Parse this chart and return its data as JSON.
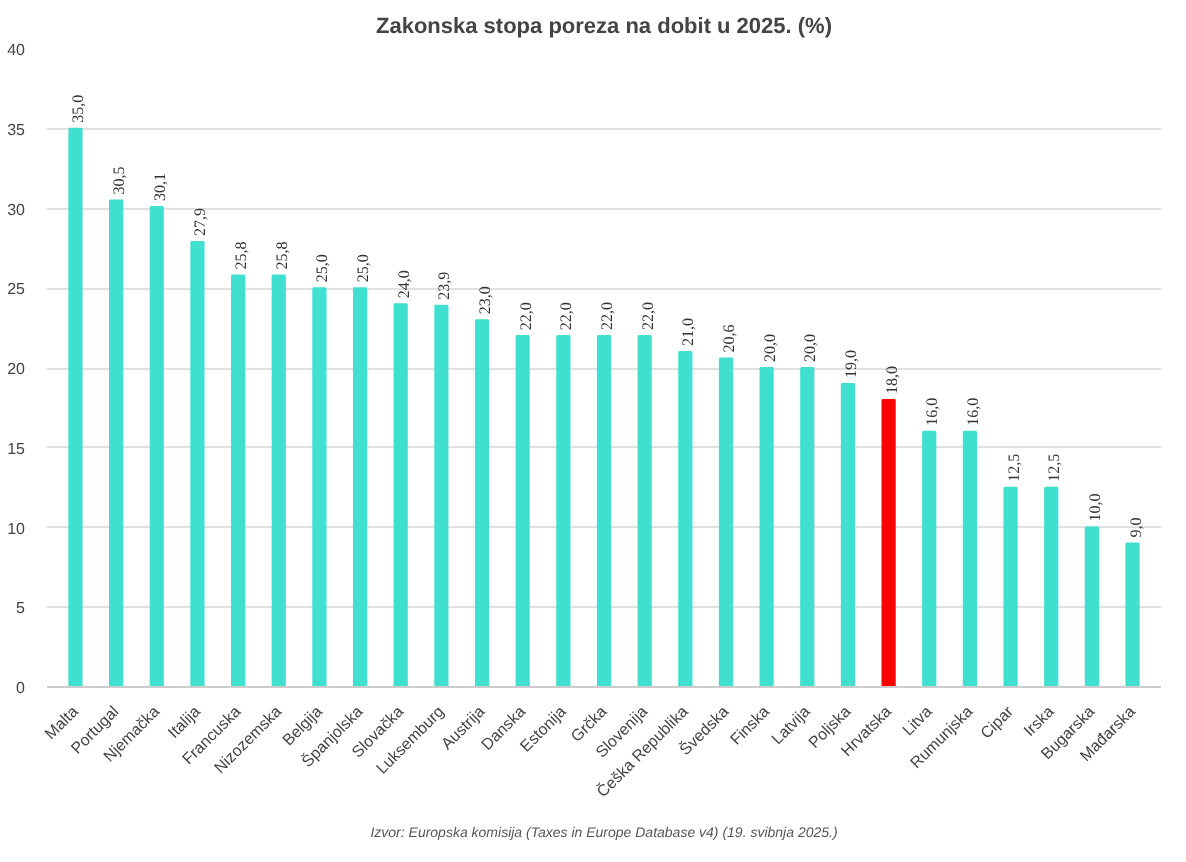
{
  "chart_data": {
    "type": "bar",
    "title": "Zakonska stopa poreza na dobit u 2025. (%)",
    "categories": [
      "Malta",
      "Portugal",
      "Njemačka",
      "Italija",
      "Francuska",
      "Nizozemska",
      "Belgija",
      "Španjolska",
      "Slovačka",
      "Luksemburg",
      "Austrija",
      "Danska",
      "Estonija",
      "Grčka",
      "Slovenija",
      "Češka Republika",
      "Švedska",
      "Finska",
      "Latvija",
      "Poljska",
      "Hrvatska",
      "Litva",
      "Rumunjska",
      "Cipar",
      "Irska",
      "Bugarska",
      "Mađarska"
    ],
    "values": [
      35.0,
      30.5,
      30.1,
      27.9,
      25.8,
      25.8,
      25.0,
      25.0,
      24.0,
      23.9,
      23.0,
      22.0,
      22.0,
      22.0,
      22.0,
      21.0,
      20.6,
      20.0,
      20.0,
      19.0,
      18.0,
      16.0,
      16.0,
      12.5,
      12.5,
      10.0,
      9.0
    ],
    "value_labels": [
      "35,0",
      "30,5",
      "30,1",
      "27,9",
      "25,8",
      "25,8",
      "25,0",
      "25,0",
      "24,0",
      "23,9",
      "23,0",
      "22,0",
      "22,0",
      "22,0",
      "22,0",
      "21,0",
      "20,6",
      "20,0",
      "20,0",
      "19,0",
      "18,0",
      "16,0",
      "16,0",
      "12,5",
      "12,5",
      "10,0",
      "9,0"
    ],
    "colors": [
      "#40e0d0",
      "#40e0d0",
      "#40e0d0",
      "#40e0d0",
      "#40e0d0",
      "#40e0d0",
      "#40e0d0",
      "#40e0d0",
      "#40e0d0",
      "#40e0d0",
      "#40e0d0",
      "#40e0d0",
      "#40e0d0",
      "#40e0d0",
      "#40e0d0",
      "#40e0d0",
      "#40e0d0",
      "#40e0d0",
      "#40e0d0",
      "#40e0d0",
      "#ff0000",
      "#40e0d0",
      "#40e0d0",
      "#40e0d0",
      "#40e0d0",
      "#40e0d0",
      "#40e0d0"
    ],
    "ylim": [
      0,
      40
    ],
    "yticks": [
      0,
      5,
      10,
      15,
      20,
      25,
      30,
      35,
      40
    ],
    "grid": "y",
    "annotations": [
      "Izvor: Europska komisija (Taxes in Europe Database v4) (19. svibnja 2025.)"
    ]
  }
}
